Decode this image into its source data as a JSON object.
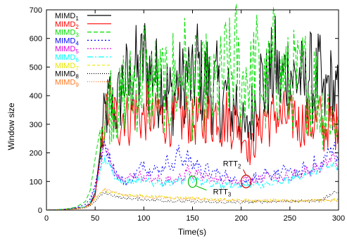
{
  "chart_data": {
    "type": "line",
    "title": "",
    "xlabel": "Time(s)",
    "ylabel": "Window size",
    "xlim": [
      0,
      300
    ],
    "ylim": [
      0,
      700
    ],
    "xticks": [
      0,
      50,
      100,
      150,
      200,
      250,
      300
    ],
    "yticks": [
      0,
      100,
      200,
      300,
      400,
      500,
      600,
      700
    ],
    "legend_position": "top-right",
    "grid": false,
    "x": [
      0,
      10,
      20,
      30,
      40,
      45,
      50,
      55,
      60,
      65,
      70,
      75,
      80,
      85,
      90,
      95,
      100,
      105,
      110,
      115,
      120,
      125,
      130,
      135,
      140,
      145,
      150,
      155,
      160,
      165,
      170,
      175,
      180,
      185,
      190,
      195,
      200,
      205,
      210,
      215,
      220,
      225,
      230,
      235,
      240,
      245,
      250,
      255,
      260,
      265,
      270,
      275,
      280,
      285,
      290,
      295,
      300
    ],
    "series": [
      {
        "name": "MIMD1",
        "base": "MIMD",
        "sub": "1",
        "color": "#000000",
        "dash": "",
        "values": [
          0,
          1,
          3,
          6,
          12,
          22,
          60,
          200,
          330,
          380,
          340,
          390,
          470,
          420,
          510,
          450,
          540,
          470,
          500,
          430,
          470,
          410,
          390,
          450,
          440,
          480,
          430,
          520,
          440,
          470,
          400,
          440,
          350,
          420,
          330,
          390,
          300,
          260,
          330,
          390,
          460,
          420,
          470,
          510,
          440,
          480,
          500,
          450,
          470,
          430,
          490,
          420,
          480,
          360,
          450,
          410,
          380
        ]
      },
      {
        "name": "MIMD2",
        "base": "MIMD",
        "sub": "2",
        "color": "#ff0000",
        "dash": "",
        "values": [
          0,
          1,
          2,
          5,
          10,
          20,
          50,
          180,
          320,
          360,
          330,
          300,
          350,
          310,
          370,
          330,
          320,
          360,
          300,
          350,
          310,
          330,
          290,
          340,
          310,
          330,
          300,
          320,
          290,
          340,
          310,
          350,
          290,
          330,
          300,
          310,
          280,
          250,
          200,
          260,
          300,
          340,
          300,
          350,
          310,
          330,
          300,
          340,
          290,
          320,
          310,
          300,
          330,
          270,
          310,
          300,
          290
        ]
      },
      {
        "name": "MIMD3",
        "base": "MIMD",
        "sub": "3",
        "color": "#00dd00",
        "dash": "6,3",
        "values": [
          0,
          1,
          4,
          10,
          30,
          70,
          180,
          280,
          340,
          380,
          400,
          360,
          430,
          410,
          460,
          420,
          520,
          390,
          480,
          410,
          450,
          380,
          470,
          420,
          530,
          450,
          400,
          470,
          420,
          460,
          380,
          430,
          450,
          510,
          470,
          540,
          420,
          490,
          440,
          520,
          450,
          410,
          480,
          540,
          430,
          500,
          410,
          470,
          430,
          480,
          400,
          450,
          380,
          330,
          360,
          320,
          300
        ]
      },
      {
        "name": "MIMD4",
        "base": "MIMD",
        "sub": "4",
        "color": "#0000ff",
        "dash": "2,3",
        "values": [
          0,
          1,
          3,
          8,
          20,
          40,
          90,
          170,
          230,
          180,
          140,
          110,
          100,
          95,
          120,
          140,
          170,
          130,
          160,
          130,
          150,
          180,
          140,
          210,
          170,
          190,
          150,
          170,
          130,
          150,
          120,
          140,
          110,
          130,
          100,
          110,
          90,
          100,
          110,
          120,
          100,
          130,
          110,
          140,
          120,
          150,
          130,
          140,
          120,
          160,
          130,
          170,
          140,
          180,
          200,
          230,
          170
        ]
      },
      {
        "name": "MIMD5",
        "base": "MIMD",
        "sub": "5",
        "color": "#dd00dd",
        "dash": "2,2",
        "values": [
          0,
          1,
          2,
          5,
          12,
          30,
          80,
          150,
          230,
          180,
          130,
          110,
          100,
          120,
          110,
          130,
          110,
          120,
          100,
          115,
          95,
          110,
          100,
          120,
          105,
          150,
          120,
          130,
          110,
          120,
          105,
          110,
          100,
          115,
          95,
          100,
          95,
          110,
          100,
          105,
          110,
          120,
          130,
          115,
          105,
          120,
          110,
          130,
          120,
          140,
          130,
          150,
          140,
          160,
          170,
          190,
          150
        ]
      },
      {
        "name": "MIMD6",
        "base": "MIMD",
        "sub": "6",
        "color": "#00ffff",
        "dash": "8,3,2,3",
        "values": [
          0,
          1,
          2,
          5,
          12,
          28,
          70,
          130,
          180,
          150,
          120,
          110,
          95,
          105,
          100,
          115,
          95,
          110,
          90,
          105,
          85,
          100,
          90,
          110,
          95,
          120,
          100,
          115,
          90,
          105,
          85,
          100,
          80,
          95,
          85,
          90,
          80,
          95,
          85,
          90,
          80,
          95,
          85,
          100,
          90,
          110,
          100,
          120,
          110,
          130,
          120,
          140,
          130,
          150,
          150,
          160,
          140
        ]
      },
      {
        "name": "MIMD7",
        "base": "MIMD",
        "sub": "7",
        "color": "#e8e800",
        "dash": "4,3",
        "values": [
          0,
          1,
          2,
          4,
          10,
          20,
          40,
          60,
          70,
          65,
          60,
          55,
          50,
          55,
          50,
          52,
          48,
          50,
          45,
          48,
          44,
          46,
          42,
          45,
          40,
          44,
          42,
          40,
          38,
          40,
          36,
          38,
          35,
          37,
          34,
          36,
          33,
          35,
          32,
          34,
          33,
          35,
          34,
          36,
          33,
          35,
          34,
          32,
          33,
          35,
          32,
          34,
          33,
          35,
          34,
          36,
          35
        ]
      },
      {
        "name": "MIMD8",
        "base": "MIMD",
        "sub": "8",
        "color": "#000000",
        "dash": "1,2",
        "values": [
          0,
          1,
          2,
          4,
          8,
          15,
          30,
          50,
          60,
          55,
          50,
          45,
          40,
          42,
          38,
          40,
          36,
          38,
          34,
          36,
          32,
          34,
          30,
          32,
          29,
          31,
          28,
          30,
          27,
          29,
          26,
          28,
          26,
          27,
          25,
          27,
          26,
          28,
          27,
          29,
          28,
          30,
          29,
          31,
          30,
          32,
          31,
          30,
          31,
          33,
          32,
          34,
          33,
          40,
          50,
          65,
          60
        ]
      },
      {
        "name": "MIMD9",
        "base": "MIMD",
        "sub": "9",
        "color": "#ff7722",
        "dash": "1,2",
        "values": [
          0,
          1,
          2,
          4,
          9,
          18,
          38,
          58,
          72,
          68,
          62,
          56,
          52,
          50,
          48,
          50,
          46,
          48,
          44,
          46,
          42,
          44,
          40,
          42,
          38,
          40,
          37,
          39,
          36,
          38,
          35,
          37,
          34,
          36,
          33,
          35,
          32,
          34,
          31,
          33,
          32,
          34,
          33,
          35,
          32,
          34,
          33,
          31,
          32,
          34,
          31,
          33,
          32,
          34,
          33,
          35,
          34
        ]
      }
    ],
    "annotations": [
      {
        "base": "RTT",
        "sub": "2",
        "x": 205,
        "y": 100,
        "color": "#cc0000"
      },
      {
        "base": "RTT",
        "sub": "3",
        "x": 150,
        "y": 50,
        "color": "#00bb00"
      }
    ]
  }
}
